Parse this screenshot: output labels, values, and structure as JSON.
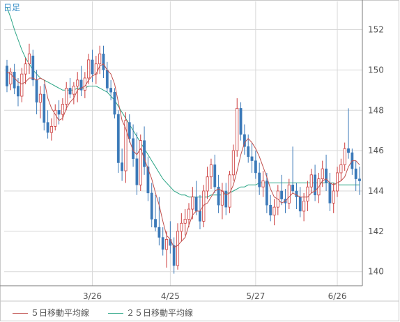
{
  "chart_data": {
    "type": "candlestick",
    "period_label": "日足",
    "x_tick_labels": [
      "3/26",
      "4/25",
      "5/27",
      "6/26"
    ],
    "y_ticks": [
      140,
      142,
      144,
      146,
      148,
      150,
      152
    ],
    "ylim": [
      139.3,
      153.4
    ],
    "grid": true,
    "colors": {
      "up": "#cc3b3b",
      "down": "#3b79b8",
      "ma5": "#c0504d",
      "ma25": "#2aa585",
      "grid": "#d8d8d8",
      "axis": "#7a7a7a"
    },
    "legend": [
      {
        "label": "５日移動平均線",
        "color": "#c0504d"
      },
      {
        "label": "２５日移動平均線",
        "color": "#2aa585"
      }
    ],
    "candles": [
      [
        150.2,
        150.5,
        148.9,
        149.2
      ],
      [
        149.3,
        150.1,
        149.0,
        149.9
      ],
      [
        149.9,
        150.3,
        148.8,
        149.1
      ],
      [
        149.2,
        149.6,
        148.2,
        148.7
      ],
      [
        148.7,
        150.1,
        148.4,
        149.8
      ],
      [
        149.8,
        150.6,
        149.3,
        150.3
      ],
      [
        150.3,
        151.3,
        149.8,
        150.8
      ],
      [
        150.7,
        151.0,
        149.2,
        149.5
      ],
      [
        149.5,
        150.0,
        147.8,
        148.4
      ],
      [
        148.4,
        149.2,
        147.6,
        148.8
      ],
      [
        148.8,
        149.3,
        147.0,
        147.4
      ],
      [
        147.4,
        148.0,
        146.6,
        146.9
      ],
      [
        146.9,
        147.6,
        146.5,
        147.2
      ],
      [
        147.2,
        148.3,
        147.0,
        148.0
      ],
      [
        148.0,
        148.5,
        147.3,
        147.8
      ],
      [
        147.8,
        148.6,
        147.5,
        148.3
      ],
      [
        148.3,
        149.4,
        148.0,
        149.1
      ],
      [
        149.1,
        149.6,
        148.6,
        148.8
      ],
      [
        148.8,
        149.4,
        148.3,
        149.2
      ],
      [
        149.2,
        149.9,
        148.4,
        149.5
      ],
      [
        149.5,
        150.2,
        148.7,
        149.0
      ],
      [
        149.0,
        149.9,
        148.6,
        149.6
      ],
      [
        149.6,
        150.8,
        149.3,
        150.5
      ],
      [
        150.5,
        151.0,
        149.4,
        149.8
      ],
      [
        149.8,
        150.7,
        149.3,
        150.3
      ],
      [
        150.3,
        151.2,
        149.8,
        150.8
      ],
      [
        150.8,
        151.2,
        149.6,
        150.0
      ],
      [
        150.0,
        150.4,
        148.9,
        149.1
      ],
      [
        149.1,
        149.5,
        148.5,
        148.9
      ],
      [
        148.9,
        149.1,
        147.6,
        147.8
      ],
      [
        147.8,
        148.0,
        144.9,
        145.4
      ],
      [
        145.4,
        146.1,
        144.5,
        145.0
      ],
      [
        145.0,
        147.9,
        144.4,
        147.5
      ],
      [
        147.4,
        147.8,
        146.4,
        146.6
      ],
      [
        146.6,
        147.3,
        145.2,
        145.6
      ],
      [
        145.6,
        146.9,
        143.8,
        144.3
      ],
      [
        144.3,
        146.8,
        144.0,
        146.5
      ],
      [
        146.5,
        147.2,
        144.8,
        145.2
      ],
      [
        145.2,
        145.7,
        143.5,
        143.9
      ],
      [
        143.9,
        144.4,
        142.2,
        142.6
      ],
      [
        142.6,
        143.8,
        142.0,
        142.2
      ],
      [
        142.2,
        143.7,
        141.3,
        141.7
      ],
      [
        141.7,
        142.2,
        140.8,
        141.1
      ],
      [
        141.1,
        142.0,
        140.2,
        141.6
      ],
      [
        141.6,
        142.5,
        140.9,
        141.3
      ],
      [
        141.3,
        141.7,
        139.9,
        140.3
      ],
      [
        140.3,
        142.4,
        140.1,
        142.0
      ],
      [
        142.0,
        142.9,
        141.5,
        142.4
      ],
      [
        142.4,
        143.1,
        141.8,
        142.6
      ],
      [
        142.6,
        143.4,
        142.2,
        143.1
      ],
      [
        143.1,
        144.2,
        142.6,
        143.7
      ],
      [
        143.7,
        144.5,
        142.8,
        143.0
      ],
      [
        143.0,
        143.8,
        142.1,
        142.5
      ],
      [
        142.5,
        144.3,
        142.2,
        144.0
      ],
      [
        144.0,
        145.2,
        143.6,
        144.7
      ],
      [
        144.7,
        145.6,
        144.1,
        145.3
      ],
      [
        145.3,
        145.8,
        143.9,
        144.2
      ],
      [
        144.2,
        144.8,
        142.9,
        143.3
      ],
      [
        143.3,
        144.4,
        142.6,
        144.0
      ],
      [
        144.0,
        144.4,
        142.8,
        143.2
      ],
      [
        143.2,
        145.0,
        142.9,
        144.8
      ],
      [
        144.8,
        146.3,
        144.5,
        146.0
      ],
      [
        146.0,
        148.6,
        145.7,
        148.1
      ],
      [
        148.1,
        148.4,
        146.5,
        146.8
      ],
      [
        146.8,
        147.3,
        145.8,
        146.2
      ],
      [
        146.2,
        146.8,
        145.4,
        145.7
      ],
      [
        145.7,
        146.4,
        144.9,
        145.5
      ],
      [
        145.5,
        146.0,
        144.6,
        144.9
      ],
      [
        144.9,
        145.4,
        143.8,
        144.2
      ],
      [
        144.2,
        145.0,
        143.7,
        144.5
      ],
      [
        144.5,
        144.9,
        142.9,
        143.3
      ],
      [
        143.3,
        143.8,
        142.5,
        142.8
      ],
      [
        142.8,
        143.6,
        142.3,
        143.2
      ],
      [
        143.2,
        144.3,
        142.8,
        144.0
      ],
      [
        144.0,
        144.8,
        143.3,
        143.6
      ],
      [
        143.6,
        144.1,
        142.9,
        143.4
      ],
      [
        143.4,
        144.6,
        143.1,
        144.3
      ],
      [
        144.3,
        146.2,
        143.9,
        144.0
      ],
      [
        144.0,
        144.4,
        143.1,
        143.7
      ],
      [
        143.7,
        144.2,
        142.7,
        143.0
      ],
      [
        143.0,
        143.9,
        142.5,
        143.5
      ],
      [
        143.5,
        144.5,
        143.0,
        144.2
      ],
      [
        144.2,
        145.1,
        143.9,
        144.8
      ],
      [
        144.8,
        145.3,
        143.5,
        143.8
      ],
      [
        143.8,
        144.9,
        143.4,
        144.6
      ],
      [
        144.6,
        145.5,
        144.2,
        145.1
      ],
      [
        145.1,
        145.8,
        144.0,
        144.4
      ],
      [
        144.4,
        144.9,
        143.0,
        143.4
      ],
      [
        143.4,
        144.4,
        142.9,
        144.0
      ],
      [
        144.0,
        145.2,
        143.7,
        144.9
      ],
      [
        144.9,
        145.6,
        144.5,
        145.3
      ],
      [
        145.3,
        146.4,
        145.0,
        146.1
      ],
      [
        146.1,
        148.1,
        145.6,
        145.9
      ],
      [
        145.9,
        146.1,
        144.8,
        145.1
      ],
      [
        145.1,
        145.5,
        144.0,
        144.6
      ],
      [
        144.6,
        145.2,
        143.8,
        144.5
      ]
    ],
    "ma5": [
      149.9,
      149.8,
      149.6,
      149.4,
      149.3,
      149.4,
      149.6,
      149.6,
      149.5,
      149.6,
      149.5,
      148.6,
      148.1,
      147.8,
      147.5,
      147.6,
      148.1,
      148.4,
      148.6,
      149.0,
      149.1,
      149.2,
      149.5,
      149.7,
      149.8,
      150.2,
      150.3,
      150.0,
      149.8,
      149.3,
      148.4,
      147.5,
      147.1,
      146.5,
      146.0,
      145.8,
      146.1,
      145.6,
      145.1,
      144.6,
      143.9,
      143.3,
      142.5,
      141.8,
      141.6,
      141.2,
      141.3,
      141.5,
      141.7,
      142.3,
      142.8,
      143.0,
      143.0,
      143.3,
      143.4,
      143.7,
      144.0,
      144.1,
      144.0,
      143.8,
      143.9,
      144.3,
      145.0,
      145.8,
      146.4,
      146.6,
      146.4,
      146.1,
      145.7,
      145.2,
      144.7,
      144.1,
      143.7,
      143.6,
      143.4,
      143.5,
      143.7,
      143.9,
      143.8,
      143.7,
      143.7,
      143.7,
      143.9,
      144.0,
      144.2,
      144.5,
      144.6,
      144.4,
      144.3,
      144.4,
      144.5,
      144.7,
      145.2,
      145.5,
      145.5,
      145.3
    ],
    "ma25": [
      153.1,
      152.6,
      152.0,
      151.5,
      151.0,
      150.6,
      150.3,
      150.0,
      149.8,
      149.6,
      149.5,
      149.4,
      149.3,
      149.2,
      149.1,
      149.0,
      149.0,
      149.0,
      149.0,
      149.1,
      149.1,
      149.1,
      149.2,
      149.2,
      149.2,
      149.1,
      149.0,
      148.9,
      148.7,
      148.5,
      148.2,
      147.9,
      147.6,
      147.3,
      147.0,
      146.7,
      146.4,
      146.1,
      145.8,
      145.5,
      145.2,
      144.9,
      144.6,
      144.4,
      144.2,
      144.0,
      143.9,
      143.8,
      143.8,
      143.7,
      143.7,
      143.7,
      143.7,
      143.7,
      143.7,
      143.8,
      143.8,
      143.8,
      143.8,
      143.9,
      143.9,
      144.0,
      144.1,
      144.2,
      144.2,
      144.3,
      144.3,
      144.3,
      144.4,
      144.4,
      144.4,
      144.4,
      144.4,
      144.4,
      144.4,
      144.4,
      144.4,
      144.4,
      144.4,
      144.4,
      144.4,
      144.4,
      144.4,
      144.4,
      144.4,
      144.4,
      144.4,
      144.4,
      144.4,
      144.3,
      144.3,
      144.3,
      144.3,
      144.3,
      144.3,
      144.3
    ]
  }
}
